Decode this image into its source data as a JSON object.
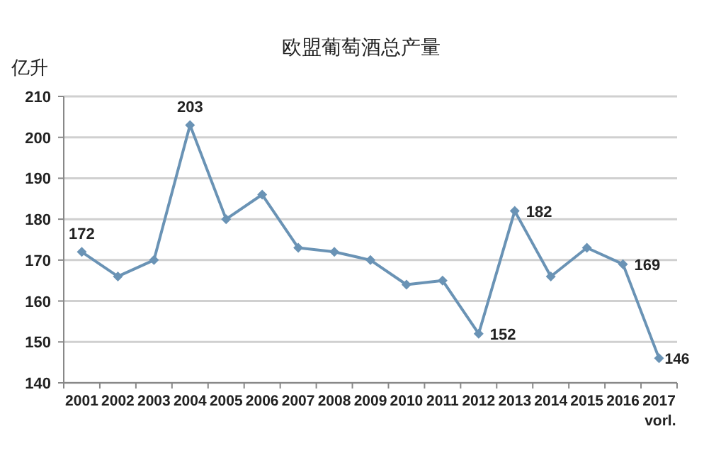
{
  "chart_data": {
    "type": "line",
    "title": "欧盟葡萄酒总产量",
    "ylabel": "亿升",
    "categories": [
      "2001",
      "2002",
      "2003",
      "2004",
      "2005",
      "2006",
      "2007",
      "2008",
      "2009",
      "2010",
      "2011",
      "2012",
      "2013",
      "2014",
      "2015",
      "2016",
      "2017\nvorl."
    ],
    "series": [
      {
        "color": "#6a93b5",
        "values": [
          172,
          166,
          170,
          203,
          180,
          186,
          173,
          172,
          170,
          164,
          165,
          152,
          182,
          166,
          173,
          169,
          146
        ],
        "value_labels": [
          "172",
          null,
          null,
          "203",
          null,
          null,
          null,
          null,
          null,
          null,
          null,
          "152",
          "182",
          null,
          null,
          "169",
          "146"
        ]
      }
    ],
    "ylim": [
      140,
      210
    ],
    "yticks": [
      140,
      150,
      160,
      170,
      180,
      190,
      200,
      210
    ],
    "grid": "y",
    "marker": "diamond",
    "line_style": "solid"
  }
}
